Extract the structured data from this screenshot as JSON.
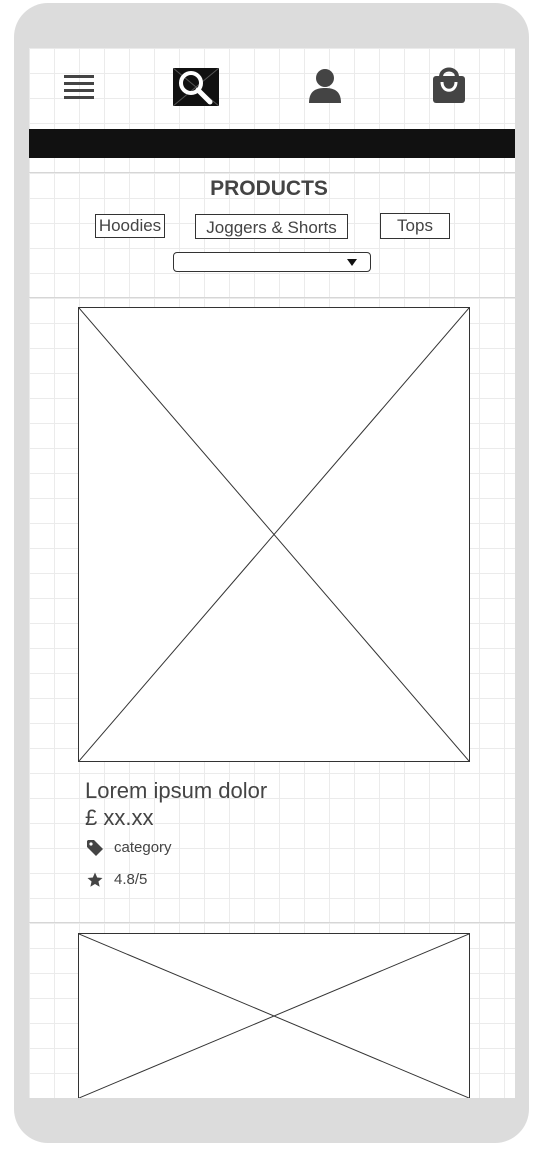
{
  "header": {
    "icons": [
      "hamburger-menu-icon",
      "search-icon",
      "user-icon",
      "shopping-bag-icon"
    ]
  },
  "page": {
    "title": "PRODUCTS"
  },
  "filters": [
    {
      "label": "Hoodies"
    },
    {
      "label": "Joggers & Shorts"
    },
    {
      "label": "Tops"
    }
  ],
  "sort_select": {
    "value": ""
  },
  "products": [
    {
      "name": "Lorem ipsum dolor",
      "price": "£ xx.xx",
      "category": "category",
      "rating": "4.8/5"
    }
  ],
  "colors": {
    "frame": "#dcdcdc",
    "banner": "#111111",
    "text": "#444444"
  }
}
